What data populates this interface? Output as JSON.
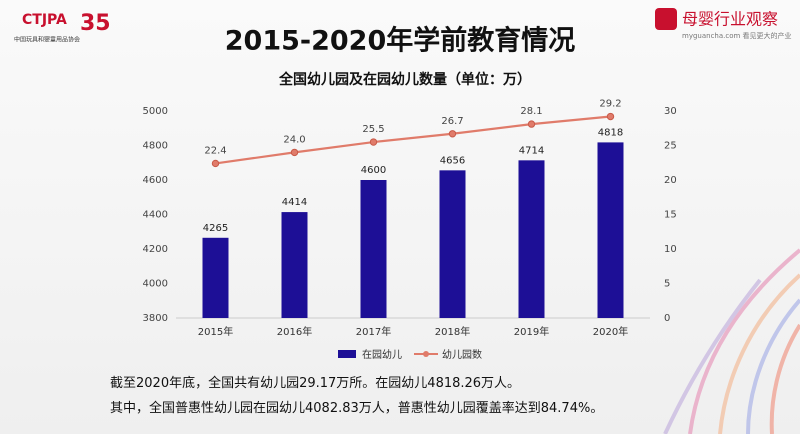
{
  "logos": {
    "left_mark": "CTJPA",
    "left_anniversary": "35",
    "left_org": "中国玩具和婴童用品协会",
    "right_name": "母婴行业观察",
    "right_site": "myguancha.com 看见更大的产业"
  },
  "heading": "2015-2020年学前教育情况",
  "chart_data": {
    "type": "bar",
    "title": "全国幼儿园及在园幼儿数量（单位：万）",
    "categories": [
      "2015年",
      "2016年",
      "2017年",
      "2018年",
      "2019年",
      "2020年"
    ],
    "series": [
      {
        "name": "在园幼儿",
        "type": "bar",
        "color": "#1d0f96",
        "values": [
          4265,
          4414,
          4600,
          4656,
          4714,
          4818
        ]
      },
      {
        "name": "幼儿园数",
        "type": "line",
        "axis": "y2",
        "color": "#e07b6a",
        "values": [
          22.4,
          24.0,
          25.5,
          26.7,
          28.1,
          29.2
        ],
        "value_labels": [
          "22.4",
          "24.0",
          "25.5",
          "26.7",
          "28.1",
          "29.2"
        ]
      }
    ],
    "ylim": [
      3800,
      5000
    ],
    "yticks": [
      3800,
      4000,
      4200,
      4400,
      4600,
      4800,
      5000
    ],
    "y2lim": [
      0,
      30
    ],
    "y2ticks": [
      0,
      5,
      10,
      15,
      20,
      25,
      30
    ],
    "grid": false,
    "legend": "bottom"
  },
  "notes": [
    "截至2020年底，全国共有幼儿园29.17万所。在园幼儿4818.26万人。",
    "其中，全国普惠性幼儿园在园幼儿4082.83万人，普惠性幼儿园覆盖率达到84.74%。"
  ]
}
